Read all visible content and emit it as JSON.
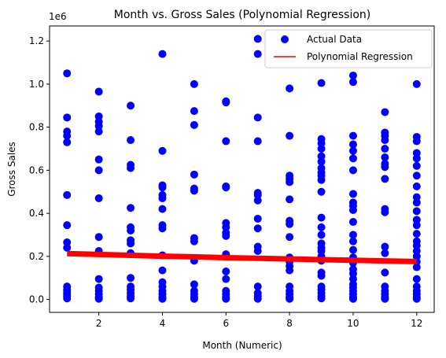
{
  "chart_data": {
    "type": "scatter",
    "title": "Month vs. Gross Sales (Polynomial Regression)",
    "xlabel": "Month (Numeric)",
    "ylabel": "Gross Sales",
    "y_scale_factor_label": "1e6",
    "xlim": [
      0.45,
      12.55
    ],
    "ylim": [
      -60000,
      1270000
    ],
    "x_ticks": [
      2,
      4,
      6,
      8,
      10,
      12
    ],
    "x_tick_labels": [
      "2",
      "4",
      "6",
      "8",
      "10",
      "12"
    ],
    "y_ticks": [
      0,
      200000,
      400000,
      600000,
      800000,
      1000000,
      1200000
    ],
    "y_tick_labels": [
      "0.0",
      "0.2",
      "0.4",
      "0.6",
      "0.8",
      "1.0",
      "1.2"
    ],
    "grid": false,
    "legend": {
      "placement": "top-right",
      "entries": [
        "Actual Data",
        "Polynomial Regression"
      ]
    },
    "colors": {
      "scatter": "#0000ff",
      "regression": "#ff0000",
      "axes": "#000000"
    },
    "series": [
      {
        "name": "Actual Data",
        "kind": "scatter",
        "points": [
          [
            1,
            1050000
          ],
          [
            1,
            845000
          ],
          [
            1,
            780000
          ],
          [
            1,
            760000
          ],
          [
            1,
            730000
          ],
          [
            1,
            485000
          ],
          [
            1,
            345000
          ],
          [
            1,
            265000
          ],
          [
            1,
            240000
          ],
          [
            1,
            60000
          ],
          [
            1,
            45000
          ],
          [
            1,
            35000
          ],
          [
            1,
            25000
          ],
          [
            1,
            15000
          ],
          [
            1,
            5000
          ],
          [
            2,
            965000
          ],
          [
            2,
            850000
          ],
          [
            2,
            825000
          ],
          [
            2,
            805000
          ],
          [
            2,
            780000
          ],
          [
            2,
            650000
          ],
          [
            2,
            600000
          ],
          [
            2,
            470000
          ],
          [
            2,
            290000
          ],
          [
            2,
            225000
          ],
          [
            2,
            95000
          ],
          [
            2,
            55000
          ],
          [
            2,
            40000
          ],
          [
            2,
            25000
          ],
          [
            2,
            10000
          ],
          [
            2,
            3000
          ],
          [
            3,
            900000
          ],
          [
            3,
            740000
          ],
          [
            3,
            625000
          ],
          [
            3,
            610000
          ],
          [
            3,
            425000
          ],
          [
            3,
            335000
          ],
          [
            3,
            320000
          ],
          [
            3,
            275000
          ],
          [
            3,
            260000
          ],
          [
            3,
            215000
          ],
          [
            3,
            100000
          ],
          [
            3,
            60000
          ],
          [
            3,
            45000
          ],
          [
            3,
            30000
          ],
          [
            3,
            15000
          ],
          [
            3,
            5000
          ],
          [
            4,
            1140000
          ],
          [
            4,
            690000
          ],
          [
            4,
            530000
          ],
          [
            4,
            520000
          ],
          [
            4,
            485000
          ],
          [
            4,
            470000
          ],
          [
            4,
            420000
          ],
          [
            4,
            345000
          ],
          [
            4,
            330000
          ],
          [
            4,
            205000
          ],
          [
            4,
            135000
          ],
          [
            4,
            80000
          ],
          [
            4,
            60000
          ],
          [
            4,
            40000
          ],
          [
            4,
            25000
          ],
          [
            4,
            10000
          ],
          [
            4,
            3000
          ],
          [
            5,
            1000000
          ],
          [
            5,
            875000
          ],
          [
            5,
            810000
          ],
          [
            5,
            580000
          ],
          [
            5,
            515000
          ],
          [
            5,
            505000
          ],
          [
            5,
            285000
          ],
          [
            5,
            270000
          ],
          [
            5,
            180000
          ],
          [
            5,
            70000
          ],
          [
            5,
            40000
          ],
          [
            5,
            25000
          ],
          [
            5,
            10000
          ],
          [
            5,
            3000
          ],
          [
            6,
            920000
          ],
          [
            6,
            915000
          ],
          [
            6,
            735000
          ],
          [
            6,
            525000
          ],
          [
            6,
            520000
          ],
          [
            6,
            355000
          ],
          [
            6,
            335000
          ],
          [
            6,
            310000
          ],
          [
            6,
            295000
          ],
          [
            6,
            210000
          ],
          [
            6,
            130000
          ],
          [
            6,
            95000
          ],
          [
            6,
            40000
          ],
          [
            6,
            25000
          ],
          [
            6,
            10000
          ],
          [
            6,
            3000
          ],
          [
            7,
            1210000
          ],
          [
            7,
            1140000
          ],
          [
            7,
            845000
          ],
          [
            7,
            735000
          ],
          [
            7,
            495000
          ],
          [
            7,
            485000
          ],
          [
            7,
            460000
          ],
          [
            7,
            375000
          ],
          [
            7,
            330000
          ],
          [
            7,
            245000
          ],
          [
            7,
            225000
          ],
          [
            7,
            60000
          ],
          [
            7,
            30000
          ],
          [
            7,
            15000
          ],
          [
            7,
            3000
          ],
          [
            8,
            980000
          ],
          [
            8,
            760000
          ],
          [
            8,
            575000
          ],
          [
            8,
            560000
          ],
          [
            8,
            545000
          ],
          [
            8,
            465000
          ],
          [
            8,
            365000
          ],
          [
            8,
            350000
          ],
          [
            8,
            290000
          ],
          [
            8,
            195000
          ],
          [
            8,
            175000
          ],
          [
            8,
            155000
          ],
          [
            8,
            135000
          ],
          [
            8,
            60000
          ],
          [
            8,
            40000
          ],
          [
            8,
            25000
          ],
          [
            8,
            10000
          ],
          [
            8,
            3000
          ],
          [
            9,
            1005000
          ],
          [
            9,
            745000
          ],
          [
            9,
            725000
          ],
          [
            9,
            700000
          ],
          [
            9,
            665000
          ],
          [
            9,
            640000
          ],
          [
            9,
            610000
          ],
          [
            9,
            590000
          ],
          [
            9,
            575000
          ],
          [
            9,
            555000
          ],
          [
            9,
            500000
          ],
          [
            9,
            380000
          ],
          [
            9,
            335000
          ],
          [
            9,
            300000
          ],
          [
            9,
            260000
          ],
          [
            9,
            240000
          ],
          [
            9,
            225000
          ],
          [
            9,
            200000
          ],
          [
            9,
            180000
          ],
          [
            9,
            125000
          ],
          [
            9,
            110000
          ],
          [
            9,
            60000
          ],
          [
            9,
            45000
          ],
          [
            9,
            30000
          ],
          [
            9,
            15000
          ],
          [
            9,
            5000
          ],
          [
            10,
            1040000
          ],
          [
            10,
            1010000
          ],
          [
            10,
            760000
          ],
          [
            10,
            720000
          ],
          [
            10,
            690000
          ],
          [
            10,
            655000
          ],
          [
            10,
            600000
          ],
          [
            10,
            490000
          ],
          [
            10,
            450000
          ],
          [
            10,
            435000
          ],
          [
            10,
            415000
          ],
          [
            10,
            360000
          ],
          [
            10,
            300000
          ],
          [
            10,
            270000
          ],
          [
            10,
            230000
          ],
          [
            10,
            195000
          ],
          [
            10,
            170000
          ],
          [
            10,
            140000
          ],
          [
            10,
            120000
          ],
          [
            10,
            95000
          ],
          [
            10,
            70000
          ],
          [
            10,
            55000
          ],
          [
            10,
            40000
          ],
          [
            10,
            25000
          ],
          [
            10,
            10000
          ],
          [
            10,
            3000
          ],
          [
            11,
            870000
          ],
          [
            11,
            775000
          ],
          [
            11,
            760000
          ],
          [
            11,
            740000
          ],
          [
            11,
            700000
          ],
          [
            11,
            660000
          ],
          [
            11,
            630000
          ],
          [
            11,
            615000
          ],
          [
            11,
            560000
          ],
          [
            11,
            420000
          ],
          [
            11,
            405000
          ],
          [
            11,
            245000
          ],
          [
            11,
            215000
          ],
          [
            11,
            125000
          ],
          [
            11,
            60000
          ],
          [
            11,
            40000
          ],
          [
            11,
            25000
          ],
          [
            11,
            10000
          ],
          [
            11,
            3000
          ],
          [
            12,
            1000000
          ],
          [
            12,
            755000
          ],
          [
            12,
            735000
          ],
          [
            12,
            680000
          ],
          [
            12,
            655000
          ],
          [
            12,
            620000
          ],
          [
            12,
            575000
          ],
          [
            12,
            525000
          ],
          [
            12,
            475000
          ],
          [
            12,
            450000
          ],
          [
            12,
            410000
          ],
          [
            12,
            370000
          ],
          [
            12,
            345000
          ],
          [
            12,
            305000
          ],
          [
            12,
            270000
          ],
          [
            12,
            250000
          ],
          [
            12,
            225000
          ],
          [
            12,
            200000
          ],
          [
            12,
            175000
          ],
          [
            12,
            150000
          ],
          [
            12,
            95000
          ],
          [
            12,
            60000
          ],
          [
            12,
            40000
          ],
          [
            12,
            25000
          ],
          [
            12,
            10000
          ],
          [
            12,
            3000
          ]
        ]
      },
      {
        "name": "Polynomial Regression",
        "kind": "line",
        "x": [
          1,
          2,
          3,
          4,
          5,
          6,
          7,
          8,
          9,
          10,
          11,
          12
        ],
        "y": [
          213000,
          209000,
          205000,
          201000,
          198000,
          194000,
          191000,
          188000,
          185000,
          182000,
          179000,
          176000
        ]
      }
    ]
  }
}
